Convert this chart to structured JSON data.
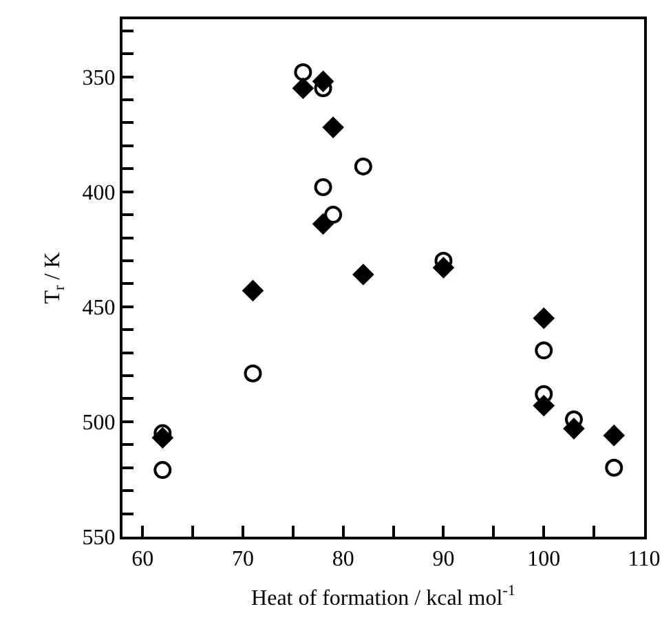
{
  "chart_data": {
    "type": "scatter",
    "xlabel": "Heat of formation / kcal mol$^{-1}$",
    "ylabel": "T$_{r}$ / K",
    "series": [
      {
        "color": "#000000",
        "marker": "diamond",
        "x": [
          76,
          78,
          79,
          78,
          82,
          71,
          90,
          100,
          100,
          103,
          107,
          62
        ],
        "values": [
          355,
          352,
          372,
          414,
          436,
          443,
          433,
          455,
          493,
          503,
          506,
          507
        ]
      },
      {
        "color": "#000000",
        "marker": "circle",
        "x": [
          76,
          78,
          82,
          78,
          79,
          71,
          90,
          100,
          100,
          103,
          107,
          62,
          62
        ],
        "values": [
          348,
          355,
          389,
          398,
          410,
          479,
          430,
          469,
          488,
          499,
          520,
          505,
          521
        ]
      }
    ],
    "xlim": [
      58,
      110
    ],
    "ylim": [
      550,
      325
    ],
    "xticks": [
      60,
      {
        "value": 65,
        "label": null
      },
      70,
      {
        "value": 75,
        "label": null
      },
      80,
      {
        "value": 85,
        "label": null
      },
      90,
      {
        "value": 95,
        "label": null
      },
      100,
      {
        "value": 105,
        "label": null
      },
      110
    ],
    "yticks": [
      {
        "value": 330,
        "label": null
      },
      {
        "value": 340,
        "label": null
      },
      350,
      {
        "value": 360,
        "label": null
      },
      {
        "value": 370,
        "label": null
      },
      {
        "value": 380,
        "label": null
      },
      {
        "value": 390,
        "label": null
      },
      400,
      {
        "value": 410,
        "label": null
      },
      {
        "value": 420,
        "label": null
      },
      {
        "value": 430,
        "label": null
      },
      {
        "value": 440,
        "label": null
      },
      450,
      {
        "value": 460,
        "label": null
      },
      {
        "value": 470,
        "label": null
      },
      {
        "value": 480,
        "label": null
      },
      {
        "value": 490,
        "label": null
      },
      500,
      {
        "value": 510,
        "label": null
      },
      {
        "value": 520,
        "label": null
      },
      {
        "value": 530,
        "label": null
      },
      {
        "value": 540,
        "label": null
      },
      550
    ],
    "grid": false
  }
}
